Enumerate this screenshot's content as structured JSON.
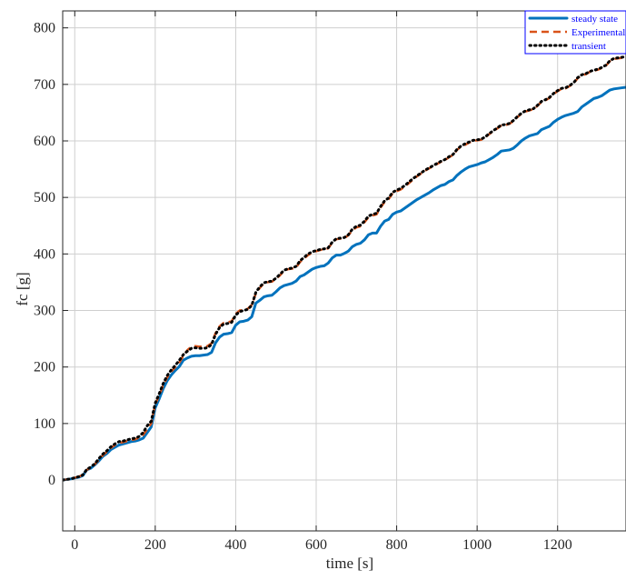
{
  "chart_data": {
    "type": "line",
    "title": "",
    "xlabel": "time [s]",
    "ylabel": "fc [g]",
    "xlim": [
      -30,
      1370
    ],
    "ylim": [
      -90,
      830
    ],
    "grid": true,
    "legend_position": "top-right",
    "legend_text_color": "#0000ff",
    "legend_border_color": "#0000ff",
    "x_ticks": [
      0,
      200,
      400,
      600,
      800,
      1000,
      1200
    ],
    "x_tick_labels": [
      "0",
      "200",
      "400",
      "600",
      "800",
      "1000",
      "1200"
    ],
    "y_ticks": [
      0,
      100,
      200,
      300,
      400,
      500,
      600,
      700,
      800
    ],
    "y_tick_labels": [
      "0",
      "100",
      "200",
      "300",
      "400",
      "500",
      "600",
      "700",
      "800"
    ],
    "series": [
      {
        "name": "steady state",
        "color": "#0072bd",
        "style": "solid",
        "x": [
          -30,
          -10,
          10,
          20,
          30,
          40,
          50,
          60,
          70,
          80,
          90,
          100,
          110,
          120,
          130,
          140,
          150,
          160,
          170,
          180,
          190,
          200,
          210,
          220,
          230,
          240,
          250,
          260,
          270,
          280,
          290,
          300,
          310,
          320,
          330,
          340,
          350,
          360,
          370,
          380,
          390,
          400,
          410,
          420,
          430,
          440,
          450,
          460,
          470,
          480,
          490,
          500,
          510,
          520,
          530,
          540,
          550,
          560,
          570,
          580,
          590,
          600,
          610,
          620,
          630,
          640,
          650,
          660,
          670,
          680,
          690,
          700,
          710,
          720,
          730,
          740,
          750,
          760,
          770,
          780,
          790,
          800,
          810,
          820,
          830,
          840,
          850,
          860,
          870,
          880,
          890,
          900,
          910,
          920,
          930,
          940,
          950,
          960,
          970,
          980,
          990,
          1000,
          1010,
          1020,
          1030,
          1040,
          1050,
          1060,
          1070,
          1080,
          1090,
          1100,
          1110,
          1120,
          1130,
          1140,
          1150,
          1160,
          1170,
          1180,
          1190,
          1200,
          1210,
          1220,
          1230,
          1240,
          1250,
          1260,
          1270,
          1280,
          1290,
          1300,
          1310,
          1320,
          1330,
          1340,
          1350,
          1360,
          1370
        ],
        "values": [
          0,
          2,
          5,
          8,
          18,
          21,
          27,
          34,
          42,
          47,
          54,
          58,
          62,
          64,
          66,
          68,
          69,
          71,
          74,
          84,
          94,
          128,
          144,
          162,
          176,
          186,
          194,
          201,
          212,
          216,
          219,
          220,
          220,
          221,
          222,
          226,
          243,
          253,
          258,
          259,
          261,
          274,
          280,
          281,
          283,
          289,
          313,
          318,
          324,
          326,
          327,
          333,
          340,
          344,
          346,
          348,
          352,
          360,
          363,
          368,
          373,
          376,
          378,
          379,
          384,
          393,
          398,
          398,
          401,
          405,
          413,
          417,
          419,
          425,
          434,
          437,
          437,
          449,
          458,
          461,
          470,
          474,
          476,
          481,
          486,
          491,
          496,
          500,
          504,
          508,
          513,
          517,
          521,
          523,
          528,
          531,
          539,
          545,
          550,
          554,
          556,
          558,
          561,
          563,
          567,
          571,
          576,
          582,
          583,
          584,
          587,
          593,
          600,
          605,
          609,
          611,
          613,
          620,
          623,
          626,
          633,
          638,
          642,
          645,
          647,
          649,
          652,
          660,
          665,
          670,
          675,
          677,
          680,
          685,
          690,
          692,
          693,
          694,
          695
        ]
      },
      {
        "name": "Experimental",
        "color": "#d95319",
        "style": "dashed",
        "x": [
          -30,
          -10,
          10,
          20,
          30,
          40,
          50,
          60,
          70,
          80,
          90,
          100,
          110,
          120,
          130,
          140,
          150,
          160,
          170,
          180,
          190,
          200,
          210,
          220,
          230,
          240,
          250,
          260,
          270,
          280,
          290,
          300,
          310,
          320,
          330,
          340,
          350,
          360,
          370,
          380,
          390,
          400,
          410,
          420,
          430,
          440,
          450,
          460,
          470,
          480,
          490,
          500,
          510,
          520,
          530,
          540,
          550,
          560,
          570,
          580,
          590,
          600,
          610,
          620,
          630,
          640,
          650,
          660,
          670,
          680,
          690,
          700,
          710,
          720,
          730,
          740,
          750,
          760,
          770,
          780,
          790,
          800,
          810,
          820,
          830,
          840,
          850,
          860,
          870,
          880,
          890,
          900,
          910,
          920,
          930,
          940,
          950,
          960,
          970,
          980,
          990,
          1000,
          1010,
          1020,
          1030,
          1040,
          1050,
          1060,
          1070,
          1080,
          1090,
          1100,
          1110,
          1120,
          1130,
          1140,
          1150,
          1160,
          1170,
          1180,
          1190,
          1200,
          1210,
          1220,
          1230,
          1240,
          1250,
          1260,
          1270,
          1280,
          1290,
          1300,
          1310,
          1320,
          1330,
          1340,
          1350,
          1360,
          1370
        ],
        "values": [
          0,
          2,
          6,
          9,
          18,
          22,
          28,
          36,
          44,
          50,
          57,
          62,
          66,
          67,
          69,
          71,
          72,
          75,
          80,
          90,
          100,
          134,
          150,
          168,
          182,
          192,
          200,
          208,
          220,
          230,
          236,
          237,
          236,
          236,
          237,
          242,
          260,
          272,
          278,
          279,
          281,
          294,
          300,
          301,
          303,
          310,
          330,
          340,
          348,
          350,
          351,
          356,
          362,
          370,
          373,
          374,
          376,
          386,
          392,
          398,
          402,
          405,
          407,
          408,
          410,
          420,
          426,
          427,
          428,
          433,
          442,
          447,
          449,
          456,
          465,
          468,
          470,
          482,
          492,
          497,
          507,
          511,
          514,
          519,
          525,
          531,
          537,
          542,
          547,
          551,
          555,
          559,
          563,
          566,
          571,
          575,
          584,
          590,
          593,
          597,
          600,
          601,
          602,
          606,
          612,
          617,
          622,
          627,
          628,
          630,
          635,
          642,
          648,
          652,
          654,
          656,
          662,
          669,
          672,
          676,
          683,
          688,
          692,
          693,
          697,
          702,
          711,
          716,
          718,
          722,
          724,
          726,
          729,
          733,
          741,
          745,
          746,
          747,
          748
        ]
      },
      {
        "name": "transient",
        "color": "#000000",
        "style": "dotted",
        "x": [
          -30,
          -10,
          10,
          20,
          30,
          40,
          50,
          60,
          70,
          80,
          90,
          100,
          110,
          120,
          130,
          140,
          150,
          160,
          170,
          180,
          190,
          200,
          210,
          220,
          230,
          240,
          250,
          260,
          270,
          280,
          290,
          300,
          310,
          320,
          330,
          340,
          350,
          360,
          370,
          380,
          390,
          400,
          410,
          420,
          430,
          440,
          450,
          460,
          470,
          480,
          490,
          500,
          510,
          520,
          530,
          540,
          550,
          560,
          570,
          580,
          590,
          600,
          610,
          620,
          630,
          640,
          650,
          660,
          670,
          680,
          690,
          700,
          710,
          720,
          730,
          740,
          750,
          760,
          770,
          780,
          790,
          800,
          810,
          820,
          830,
          840,
          850,
          860,
          870,
          880,
          890,
          900,
          910,
          920,
          930,
          940,
          950,
          960,
          970,
          980,
          990,
          1000,
          1010,
          1020,
          1030,
          1040,
          1050,
          1060,
          1070,
          1080,
          1090,
          1100,
          1110,
          1120,
          1130,
          1140,
          1150,
          1160,
          1170,
          1180,
          1190,
          1200,
          1210,
          1220,
          1230,
          1240,
          1250,
          1260,
          1270,
          1280,
          1290,
          1300,
          1310,
          1320,
          1330,
          1340,
          1350,
          1360,
          1370
        ],
        "values": [
          0,
          2,
          6,
          9,
          19,
          23,
          29,
          38,
          46,
          52,
          59,
          64,
          68,
          69,
          71,
          73,
          74,
          77,
          84,
          96,
          104,
          136,
          153,
          171,
          185,
          195,
          203,
          212,
          222,
          228,
          233,
          234,
          233,
          233,
          234,
          240,
          258,
          270,
          276,
          277,
          279,
          292,
          298,
          300,
          302,
          309,
          332,
          342,
          349,
          351,
          352,
          357,
          364,
          371,
          374,
          375,
          378,
          388,
          394,
          400,
          404,
          406,
          408,
          409,
          411,
          421,
          427,
          428,
          429,
          434,
          444,
          449,
          451,
          458,
          467,
          470,
          472,
          484,
          494,
          499,
          509,
          513,
          516,
          521,
          527,
          533,
          538,
          543,
          548,
          552,
          556,
          560,
          564,
          567,
          572,
          576,
          585,
          591,
          595,
          598,
          601,
          602,
          603,
          607,
          613,
          618,
          623,
          628,
          629,
          631,
          636,
          643,
          649,
          653,
          655,
          657,
          663,
          670,
          673,
          677,
          684,
          689,
          693,
          694,
          698,
          703,
          712,
          717,
          719,
          723,
          725,
          727,
          730,
          734,
          742,
          746,
          747,
          748,
          749
        ]
      }
    ]
  }
}
